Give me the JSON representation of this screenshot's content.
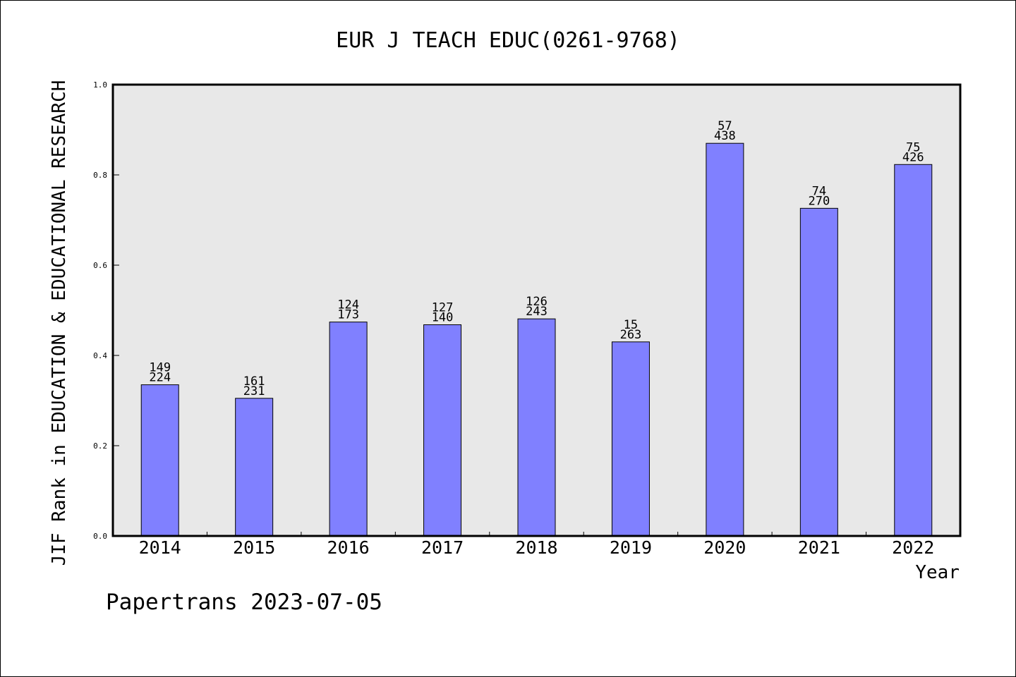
{
  "chart_data": {
    "type": "bar",
    "title": "EUR J TEACH EDUC(0261-9768)",
    "xlabel": "Year",
    "ylabel": "JIF Rank in EDUCATION & EDUCATIONAL RESEARCH",
    "ylim": [
      0,
      1.0
    ],
    "yticks": [
      "0.0",
      "0.2",
      "0.4",
      "0.6",
      "0.8",
      "1.0"
    ],
    "categories": [
      "2014",
      "2015",
      "2016",
      "2017",
      "2018",
      "2019",
      "2020",
      "2021",
      "2022"
    ],
    "values": [
      0.335,
      0.305,
      0.474,
      0.468,
      0.481,
      0.43,
      0.87,
      0.726,
      0.823
    ],
    "labels_top": [
      "149",
      "161",
      "124",
      "127",
      "126",
      "15",
      "57",
      "74",
      "75"
    ],
    "labels_bottom": [
      "224",
      "231",
      "173",
      "140",
      "243",
      "263",
      "438",
      "270",
      "426"
    ],
    "bar_color": "#8080ff",
    "plot_bg": "#e8e8e8",
    "grid": false
  },
  "footer": {
    "credit": "Papertrans 2023-07-05"
  }
}
